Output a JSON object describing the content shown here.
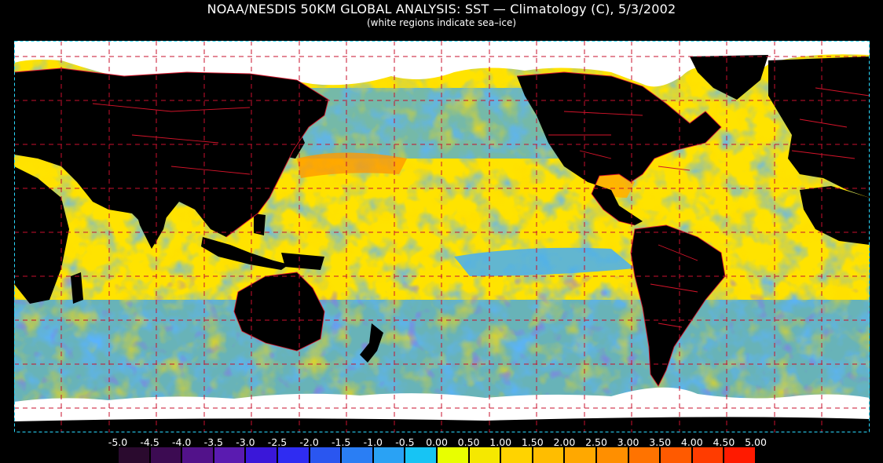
{
  "header": {
    "title": "NOAA/NESDIS 50KM GLOBAL ANALYSIS: SST — Climatology (C), 5/3/2002",
    "subtitle": "(white regions indicate sea–ice)"
  },
  "colorbar": {
    "labels": [
      "-5.0",
      "-4.5",
      "-4.0",
      "-3.5",
      "-3.0",
      "-2.5",
      "-2.0",
      "-1.5",
      "-1.0",
      "-0.5",
      "0.00",
      "0.50",
      "1.00",
      "1.50",
      "2.00",
      "2.50",
      "3.00",
      "3.50",
      "4.00",
      "4.50",
      "5.00"
    ],
    "colors": [
      "#2a0a2e",
      "#3c0b52",
      "#52128a",
      "#5a1bb0",
      "#3a17d9",
      "#2f2cf2",
      "#2a56f0",
      "#2a7ef4",
      "#2aa2f4",
      "#17c4f4",
      "#e8ff00",
      "#f5e800",
      "#ffd300",
      "#ffbd00",
      "#ffa800",
      "#ff8f00",
      "#ff7300",
      "#ff5a00",
      "#ff3c00",
      "#ff1a00"
    ]
  },
  "map": {
    "colors": {
      "land": "#000000",
      "ice": "#ffffff",
      "border": "#d4142a",
      "grid": "#c8102e",
      "frame": "#2ad9ff"
    }
  }
}
